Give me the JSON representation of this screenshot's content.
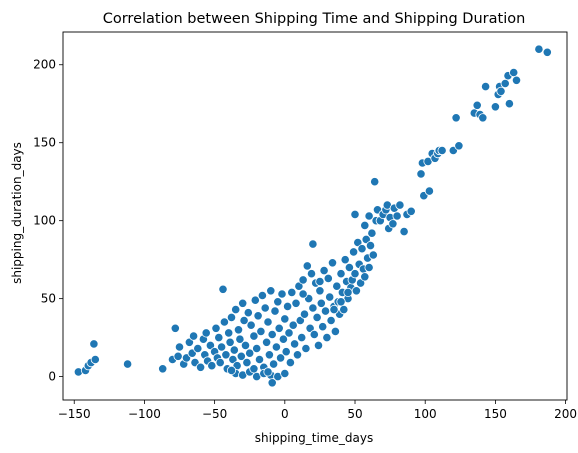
{
  "chart_data": {
    "type": "scatter",
    "title": "Correlation between Shipping Time and Shipping Duration",
    "xlabel": "shipping_time_days",
    "ylabel": "shipping_duration_days",
    "xlim": [
      -158,
      201
    ],
    "ylim": [
      -15,
      221
    ],
    "xticks": [
      -150,
      -100,
      -50,
      0,
      50,
      100,
      150,
      200
    ],
    "yticks": [
      0,
      50,
      100,
      150,
      200
    ],
    "grid": false,
    "marker_color": "#1f77b4",
    "marker_edge_color": "#ffffff",
    "series": [
      {
        "points": [
          [
            -147,
            3
          ],
          [
            -142,
            4
          ],
          [
            -140,
            7
          ],
          [
            -138,
            9
          ],
          [
            -136,
            21
          ],
          [
            -135,
            11
          ],
          [
            -112,
            8
          ],
          [
            -87,
            5
          ],
          [
            -80,
            11
          ],
          [
            -78,
            31
          ],
          [
            -75,
            19
          ],
          [
            -76,
            13
          ],
          [
            -72,
            8
          ],
          [
            -70,
            12
          ],
          [
            -68,
            22
          ],
          [
            -66,
            15
          ],
          [
            -65,
            26
          ],
          [
            -64,
            9
          ],
          [
            -62,
            18
          ],
          [
            -60,
            6
          ],
          [
            -58,
            24
          ],
          [
            -57,
            14
          ],
          [
            -56,
            28
          ],
          [
            -55,
            10
          ],
          [
            -53,
            20
          ],
          [
            -52,
            7
          ],
          [
            -50,
            16
          ],
          [
            -49,
            31
          ],
          [
            -48,
            12
          ],
          [
            -47,
            25
          ],
          [
            -46,
            9
          ],
          [
            -45,
            19
          ],
          [
            -44,
            56
          ],
          [
            -43,
            35
          ],
          [
            -42,
            14
          ],
          [
            -41,
            5
          ],
          [
            -40,
            28
          ],
          [
            -39,
            22
          ],
          [
            -38,
            38
          ],
          [
            -37,
            11
          ],
          [
            -36,
            17
          ],
          [
            -35,
            43
          ],
          [
            -34,
            7
          ],
          [
            -33,
            30
          ],
          [
            -32,
            24
          ],
          [
            -31,
            13
          ],
          [
            -30,
            47
          ],
          [
            -29,
            36
          ],
          [
            -28,
            20
          ],
          [
            -27,
            9
          ],
          [
            -26,
            41
          ],
          [
            -25,
            15
          ],
          [
            -24,
            33
          ],
          [
            -23,
            4
          ],
          [
            -22,
            26
          ],
          [
            -21,
            49
          ],
          [
            -20,
            18
          ],
          [
            -19,
            39
          ],
          [
            -18,
            11
          ],
          [
            -17,
            29
          ],
          [
            -16,
            52
          ],
          [
            -15,
            6
          ],
          [
            -14,
            44
          ],
          [
            -13,
            22
          ],
          [
            -12,
            35
          ],
          [
            -11,
            14
          ],
          [
            -10,
            55
          ],
          [
            -9,
            27
          ],
          [
            -8,
            8
          ],
          [
            -7,
            42
          ],
          [
            -6,
            19
          ],
          [
            -5,
            48
          ],
          [
            -4,
            31
          ],
          [
            -3,
            12
          ],
          [
            -2,
            53
          ],
          [
            -1,
            24
          ],
          [
            0,
            37
          ],
          [
            1,
            16
          ],
          [
            2,
            45
          ],
          [
            3,
            28
          ],
          [
            4,
            9
          ],
          [
            5,
            54
          ],
          [
            6,
            33
          ],
          [
            7,
            21
          ],
          [
            8,
            47
          ],
          [
            9,
            14
          ],
          [
            10,
            58
          ],
          [
            11,
            36
          ],
          [
            12,
            25
          ],
          [
            13,
            62
          ],
          [
            14,
            40
          ],
          [
            15,
            18
          ],
          [
            16,
            71
          ],
          [
            17,
            50
          ],
          [
            18,
            31
          ],
          [
            19,
            66
          ],
          [
            20,
            44
          ],
          [
            21,
            27
          ],
          [
            22,
            60
          ],
          [
            23,
            38
          ],
          [
            24,
            20
          ],
          [
            25,
            55
          ],
          [
            26,
            47
          ],
          [
            27,
            32
          ],
          [
            28,
            68
          ],
          [
            29,
            42
          ],
          [
            30,
            25
          ],
          [
            31,
            63
          ],
          [
            32,
            51
          ],
          [
            33,
            36
          ],
          [
            34,
            73
          ],
          [
            35,
            45
          ],
          [
            36,
            29
          ],
          [
            37,
            58
          ],
          [
            38,
            48
          ],
          [
            39,
            40
          ],
          [
            40,
            66
          ],
          [
            41,
            54
          ],
          [
            42,
            43
          ],
          [
            43,
            75
          ],
          [
            44,
            61
          ],
          [
            45,
            50
          ],
          [
            46,
            70
          ],
          [
            47,
            57
          ],
          [
            48,
            62
          ],
          [
            49,
            80
          ],
          [
            50,
            66
          ],
          [
            51,
            55
          ],
          [
            52,
            86
          ],
          [
            53,
            72
          ],
          [
            54,
            60
          ],
          [
            55,
            82
          ],
          [
            56,
            69
          ],
          [
            57,
            64
          ],
          [
            58,
            88
          ],
          [
            59,
            76
          ],
          [
            60,
            70
          ],
          [
            61,
            84
          ],
          [
            62,
            92
          ],
          [
            63,
            78
          ],
          [
            64,
            125
          ],
          [
            65,
            100
          ],
          [
            -35,
            2
          ],
          [
            -30,
            1
          ],
          [
            -25,
            3
          ],
          [
            -20,
            0
          ],
          [
            -15,
            2
          ],
          [
            -10,
            1
          ],
          [
            -5,
            0
          ],
          [
            0,
            2
          ],
          [
            -9,
            -4
          ],
          [
            -22,
            5
          ],
          [
            -12,
            3
          ],
          [
            -38,
            4
          ],
          [
            35,
            43
          ],
          [
            40,
            48
          ],
          [
            45,
            54
          ],
          [
            20,
            85
          ],
          [
            13,
            53
          ],
          [
            25,
            61
          ],
          [
            50,
            104
          ],
          [
            57,
            97
          ],
          [
            60,
            103
          ],
          [
            66,
            107
          ],
          [
            68,
            100
          ],
          [
            70,
            104
          ],
          [
            72,
            107
          ],
          [
            73,
            110
          ],
          [
            74,
            95
          ],
          [
            75,
            102
          ],
          [
            77,
            98
          ],
          [
            78,
            108
          ],
          [
            80,
            103
          ],
          [
            82,
            110
          ],
          [
            85,
            93
          ],
          [
            87,
            104
          ],
          [
            90,
            106
          ],
          [
            97,
            130
          ],
          [
            98,
            137
          ],
          [
            99,
            116
          ],
          [
            102,
            138
          ],
          [
            103,
            119
          ],
          [
            105,
            143
          ],
          [
            107,
            140
          ],
          [
            109,
            143
          ],
          [
            110,
            145
          ],
          [
            112,
            145
          ],
          [
            120,
            145
          ],
          [
            122,
            166
          ],
          [
            124,
            148
          ],
          [
            135,
            169
          ],
          [
            137,
            174
          ],
          [
            139,
            168
          ],
          [
            141,
            166
          ],
          [
            143,
            186
          ],
          [
            150,
            173
          ],
          [
            152,
            181
          ],
          [
            153,
            186
          ],
          [
            154,
            183
          ],
          [
            157,
            188
          ],
          [
            159,
            193
          ],
          [
            160,
            175
          ],
          [
            163,
            195
          ],
          [
            165,
            190
          ],
          [
            181,
            210
          ],
          [
            187,
            208
          ]
        ]
      }
    ]
  }
}
